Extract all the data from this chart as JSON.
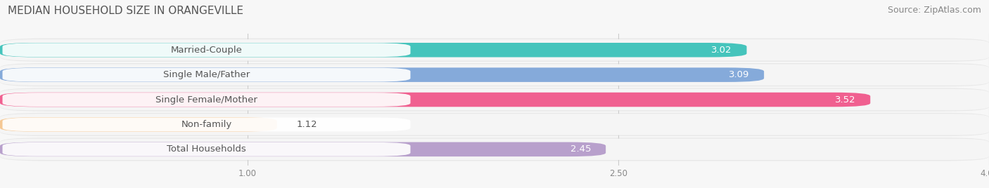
{
  "title": "MEDIAN HOUSEHOLD SIZE IN ORANGEVILLE",
  "source": "Source: ZipAtlas.com",
  "categories": [
    "Married-Couple",
    "Single Male/Father",
    "Single Female/Mother",
    "Non-family",
    "Total Households"
  ],
  "values": [
    3.02,
    3.09,
    3.52,
    1.12,
    2.45
  ],
  "bar_colors": [
    "#45c4bc",
    "#85aada",
    "#f06090",
    "#f5c894",
    "#b8a0cc"
  ],
  "xlim": [
    0.0,
    4.0
  ],
  "xticks": [
    1.0,
    2.5,
    4.0
  ],
  "title_fontsize": 11,
  "source_fontsize": 9,
  "label_fontsize": 9.5,
  "value_fontsize": 9.5,
  "bar_height": 0.58,
  "row_bg_color": "#eeeeee",
  "background_color": "#f7f7f7",
  "label_box_color": "#ffffff",
  "label_text_color": "#555555",
  "value_text_color_inside": "#ffffff",
  "value_text_color_outside": "#555555"
}
